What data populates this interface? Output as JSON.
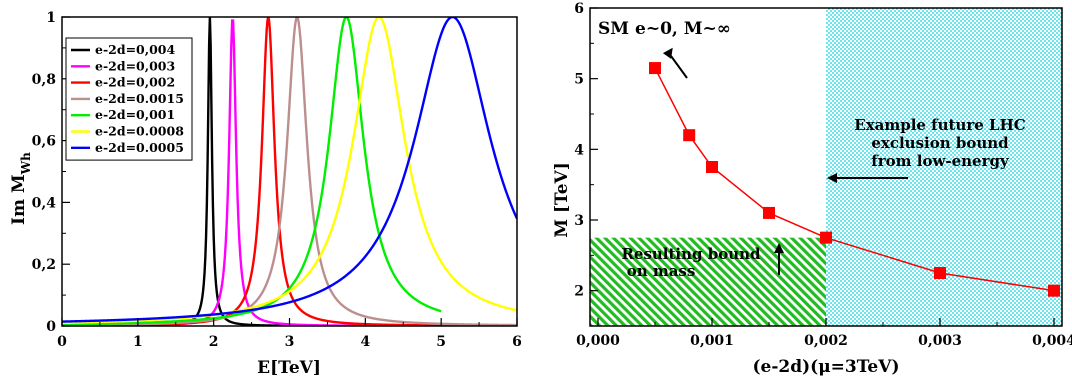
{
  "chart_data": [
    {
      "type": "line",
      "ylabel": "Im M",
      "ylabel_sub": "Wh",
      "xlabel": "E[TeV]",
      "xlim": [
        0,
        6
      ],
      "ylim": [
        0,
        1
      ],
      "x_ticks": [
        "0",
        "1",
        "2",
        "3",
        "4",
        "5",
        "6"
      ],
      "y_ticks": [
        "0",
        "0,2",
        "0,4",
        "0,6",
        "0,8",
        "1"
      ],
      "legend_position": "top-left",
      "series": [
        {
          "name": "e-2d=0,004",
          "color": "#000000",
          "peak": 1.95,
          "width": 0.032,
          "xmax": 5.0
        },
        {
          "name": "e-2d=0,003",
          "color": "#ff00ff",
          "peak": 2.25,
          "width": 0.055,
          "xmax": 6.0
        },
        {
          "name": "e-2d=0,002",
          "color": "#ff0000",
          "peak": 2.72,
          "width": 0.1,
          "xmax": 5.0
        },
        {
          "name": "e-2d=0.0015",
          "color": "#bc8f8f",
          "peak": 3.1,
          "width": 0.16,
          "xmax": 6.0
        },
        {
          "name": "e-2d=0,001",
          "color": "#00ee00",
          "peak": 3.75,
          "width": 0.28,
          "xmax": 5.0
        },
        {
          "name": "e-2d=0.0008",
          "color": "#ffff00",
          "peak": 4.18,
          "width": 0.42,
          "xmax": 6.0
        },
        {
          "name": "e-2d=0.0005",
          "color": "#0000ff",
          "peak": 5.15,
          "width": 0.62,
          "xmax": 6.0
        }
      ]
    },
    {
      "type": "line",
      "ylabel": "M [TeV]",
      "xlabel": "(e-2d)(μ=3TeV)",
      "xlim": [
        0,
        0.004
      ],
      "ylim": [
        1.5,
        6
      ],
      "x_ticks": [
        "0,000",
        "0,001",
        "0,002",
        "0,003",
        "0,004"
      ],
      "y_ticks": [
        "2",
        "3",
        "4",
        "5",
        "6"
      ],
      "series": [
        {
          "color": "#ff0000",
          "x": [
            0.0005,
            0.0008,
            0.001,
            0.0015,
            0.002,
            0.003,
            0.004
          ],
          "y": [
            5.15,
            4.2,
            3.75,
            3.1,
            2.75,
            2.25,
            2.0
          ]
        }
      ],
      "shaded_regions": [
        {
          "name": "cyan-exclusion",
          "x_range": [
            0.002,
            0.004
          ],
          "y_range": [
            1.5,
            6
          ],
          "color": "#00e5ee"
        },
        {
          "name": "green-bound",
          "x_range": [
            0,
            0.002
          ],
          "y_range": [
            1.5,
            2.75
          ],
          "color": "#00cc00"
        }
      ],
      "annotations": {
        "sm": "SM e~0, M~∞",
        "future_1": "Example future LHC",
        "future_2": "exclusion bound",
        "future_3": "from low-energy",
        "result_1": "Resulting bound",
        "result_2": "on mass"
      }
    }
  ]
}
